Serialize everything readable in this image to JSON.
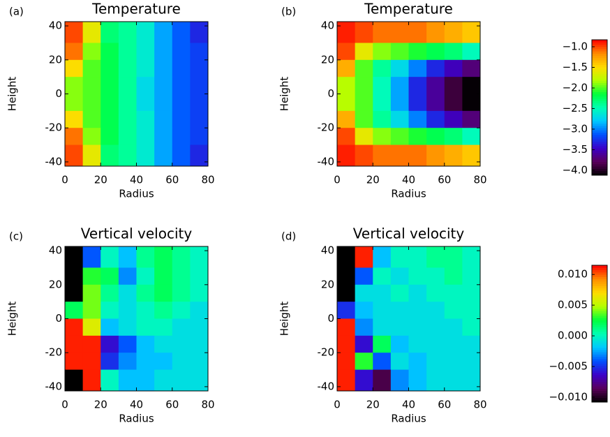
{
  "chart_data": [
    {
      "type": "heatmap",
      "panel_label": "(a)",
      "title": "Temperature",
      "x_label": "Radius",
      "y_label": "Height",
      "xlim": [
        0,
        80
      ],
      "ylim": [
        -42.5,
        42.5
      ],
      "xticks": [
        0,
        20,
        40,
        60,
        80
      ],
      "yticks": [
        -40,
        -20,
        0,
        20,
        40
      ],
      "x": [
        5,
        15,
        25,
        35,
        45,
        55,
        65,
        75
      ],
      "y": [
        35,
        25,
        15,
        5,
        -5,
        -15,
        -25,
        -35
      ],
      "clim": [
        -4.12,
        -0.83
      ],
      "colors": [
        "#000000",
        "#5a005a",
        "#3c00c8",
        "#0050ff",
        "#00c8ff",
        "#00ffb4",
        "#00ff3c",
        "#b4ff00",
        "#ffdc00",
        "#ff8c00",
        "#ff0000"
      ],
      "z": [
        [
          -1.0,
          -1.6,
          -2.3,
          -2.4,
          -2.6,
          -2.9,
          -3.1,
          -3.3
        ],
        [
          -1.1,
          -1.9,
          -2.2,
          -2.4,
          -2.6,
          -2.9,
          -3.1,
          -3.2
        ],
        [
          -1.5,
          -2.0,
          -2.2,
          -2.4,
          -2.6,
          -2.9,
          -3.1,
          -3.2
        ],
        [
          -1.9,
          -2.0,
          -2.2,
          -2.4,
          -2.7,
          -2.9,
          -3.1,
          -3.2
        ],
        [
          -1.9,
          -2.0,
          -2.2,
          -2.4,
          -2.7,
          -2.9,
          -3.1,
          -3.2
        ],
        [
          -1.5,
          -2.0,
          -2.2,
          -2.4,
          -2.6,
          -2.9,
          -3.1,
          -3.2
        ],
        [
          -1.1,
          -1.9,
          -2.2,
          -2.4,
          -2.6,
          -2.9,
          -3.1,
          -3.2
        ],
        [
          -1.0,
          -1.6,
          -2.3,
          -2.4,
          -2.6,
          -2.9,
          -3.1,
          -3.3
        ]
      ]
    },
    {
      "type": "heatmap",
      "panel_label": "(b)",
      "title": "Temperature",
      "x_label": "Radius",
      "y_label": "Height",
      "xlim": [
        0,
        80
      ],
      "ylim": [
        -42.5,
        42.5
      ],
      "xticks": [
        0,
        20,
        40,
        60,
        80
      ],
      "yticks": [
        -40,
        -20,
        0,
        20,
        40
      ],
      "x": [
        5,
        15,
        25,
        35,
        45,
        55,
        65,
        75
      ],
      "y": [
        35,
        25,
        15,
        5,
        -5,
        -15,
        -25,
        -35
      ],
      "clim": [
        -4.12,
        -0.83
      ],
      "colors": [
        "#000000",
        "#5a005a",
        "#3c00c8",
        "#0050ff",
        "#00c8ff",
        "#00ffb4",
        "#00ff3c",
        "#b4ff00",
        "#ffdc00",
        "#ff8c00",
        "#ff0000"
      ],
      "z": [
        [
          -0.9,
          -1.0,
          -1.1,
          -1.1,
          -1.1,
          -1.2,
          -1.3,
          -1.4
        ],
        [
          -1.0,
          -1.6,
          -1.9,
          -2.0,
          -2.1,
          -2.2,
          -2.3,
          -2.5
        ],
        [
          -1.3,
          -2.0,
          -2.4,
          -2.7,
          -3.0,
          -3.3,
          -3.5,
          -3.7
        ],
        [
          -1.8,
          -2.0,
          -2.5,
          -2.9,
          -3.3,
          -3.6,
          -3.9,
          -4.1
        ],
        [
          -1.8,
          -2.0,
          -2.5,
          -2.9,
          -3.3,
          -3.6,
          -3.9,
          -4.1
        ],
        [
          -1.3,
          -2.0,
          -2.4,
          -2.7,
          -3.0,
          -3.3,
          -3.5,
          -3.7
        ],
        [
          -1.0,
          -1.6,
          -1.9,
          -2.0,
          -2.1,
          -2.2,
          -2.3,
          -2.5
        ],
        [
          -0.9,
          -1.0,
          -1.1,
          -1.1,
          -1.1,
          -1.2,
          -1.3,
          -1.4
        ]
      ]
    },
    {
      "type": "colorbar",
      "ylim": [
        -4.12,
        -0.83
      ],
      "yticks": [
        {
          "value": -1.0,
          "label": "−1.0"
        },
        {
          "value": -1.5,
          "label": "−1.5"
        },
        {
          "value": -2.0,
          "label": "−2.0"
        },
        {
          "value": -2.5,
          "label": "−2.5"
        },
        {
          "value": -3.0,
          "label": "−3.0"
        },
        {
          "value": -3.5,
          "label": "−3.5"
        },
        {
          "value": -4.0,
          "label": "−4.0"
        }
      ],
      "colors": [
        "#000000",
        "#5a005a",
        "#3c00c8",
        "#0050ff",
        "#00c8ff",
        "#00ffb4",
        "#00ff3c",
        "#b4ff00",
        "#ffdc00",
        "#ff8c00",
        "#ff0000"
      ]
    },
    {
      "type": "heatmap",
      "panel_label": "(c)",
      "title": "Vertical velocity",
      "x_label": "Radius",
      "y_label": "Height",
      "xlim": [
        0,
        80
      ],
      "ylim": [
        -42.5,
        42.5
      ],
      "xticks": [
        0,
        20,
        40,
        60,
        80
      ],
      "yticks": [
        -40,
        -20,
        0,
        20,
        40
      ],
      "x": [
        5,
        15,
        25,
        35,
        45,
        55,
        65,
        75
      ],
      "y": [
        35,
        25,
        15,
        5,
        -5,
        -15,
        -25,
        -35
      ],
      "clim": [
        -0.0108,
        0.0115
      ],
      "colors": [
        "#000000",
        "#5a005a",
        "#3c00c8",
        "#0050ff",
        "#00c8ff",
        "#00ffb4",
        "#00ff3c",
        "#b4ff00",
        "#ffdc00",
        "#ff8c00",
        "#ff0000"
      ],
      "z": [
        [
          -0.011,
          -0.004,
          0.0,
          -0.002,
          0.001,
          0.002,
          0.001,
          0.0
        ],
        [
          -0.011,
          0.003,
          0.002,
          -0.003,
          0.0,
          0.002,
          0.001,
          0.0
        ],
        [
          -0.011,
          0.004,
          0.001,
          -0.001,
          0.001,
          0.002,
          0.001,
          0.0
        ],
        [
          0.002,
          0.004,
          0.0,
          -0.001,
          0.0,
          0.001,
          0.0,
          -0.001
        ],
        [
          0.011,
          0.006,
          -0.002,
          -0.001,
          0.0,
          0.0,
          -0.001,
          -0.001
        ],
        [
          0.011,
          0.011,
          -0.006,
          -0.004,
          -0.002,
          -0.001,
          -0.001,
          -0.001
        ],
        [
          0.011,
          0.011,
          -0.005,
          -0.003,
          -0.002,
          -0.002,
          -0.001,
          -0.001
        ],
        [
          -0.011,
          0.011,
          0.0,
          -0.002,
          -0.002,
          -0.001,
          -0.001,
          -0.001
        ]
      ]
    },
    {
      "type": "heatmap",
      "panel_label": "(d)",
      "title": "Vertical velocity",
      "x_label": "Radius",
      "y_label": "Height",
      "xlim": [
        0,
        80
      ],
      "ylim": [
        -42.5,
        42.5
      ],
      "xticks": [
        0,
        20,
        40,
        60,
        80
      ],
      "yticks": [
        -40,
        -20,
        0,
        20,
        40
      ],
      "x": [
        5,
        15,
        25,
        35,
        45,
        55,
        65,
        75
      ],
      "y": [
        35,
        25,
        15,
        5,
        -5,
        -15,
        -25,
        -35
      ],
      "clim": [
        -0.0108,
        0.0115
      ],
      "colors": [
        "#000000",
        "#5a005a",
        "#3c00c8",
        "#0050ff",
        "#00c8ff",
        "#00ffb4",
        "#00ff3c",
        "#b4ff00",
        "#ffdc00",
        "#ff8c00",
        "#ff0000"
      ],
      "z": [
        [
          -0.011,
          0.011,
          -0.002,
          0.0,
          0.0,
          0.001,
          0.001,
          0.0
        ],
        [
          -0.011,
          -0.004,
          0.0,
          -0.001,
          0.0,
          0.0,
          0.001,
          0.0
        ],
        [
          -0.011,
          -0.001,
          -0.001,
          0.0,
          -0.001,
          0.0,
          0.0,
          0.0
        ],
        [
          -0.005,
          -0.002,
          -0.001,
          -0.001,
          -0.001,
          -0.001,
          0.0,
          0.0
        ],
        [
          0.011,
          -0.003,
          -0.001,
          -0.001,
          -0.001,
          -0.001,
          -0.001,
          0.0
        ],
        [
          0.011,
          -0.006,
          0.002,
          -0.002,
          -0.001,
          -0.001,
          -0.001,
          -0.001
        ],
        [
          0.011,
          0.003,
          -0.004,
          -0.001,
          -0.002,
          -0.001,
          -0.001,
          -0.001
        ],
        [
          0.011,
          -0.006,
          -0.009,
          -0.003,
          -0.002,
          -0.001,
          -0.001,
          -0.001
        ]
      ]
    },
    {
      "type": "colorbar",
      "ylim": [
        -0.0108,
        0.0115
      ],
      "yticks": [
        {
          "value": 0.01,
          "label": "0.010"
        },
        {
          "value": 0.005,
          "label": "0.005"
        },
        {
          "value": 0,
          "label": "0.000"
        },
        {
          "value": -0.005,
          "label": "−0.005"
        },
        {
          "value": -0.01,
          "label": "−0.010"
        }
      ],
      "colors": [
        "#000000",
        "#5a005a",
        "#3c00c8",
        "#0050ff",
        "#00c8ff",
        "#00ffb4",
        "#00ff3c",
        "#b4ff00",
        "#ffdc00",
        "#ff8c00",
        "#ff0000"
      ]
    }
  ]
}
